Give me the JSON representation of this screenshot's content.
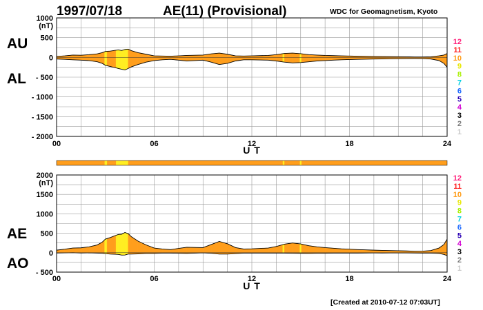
{
  "header": {
    "date": "1997/07/18",
    "title": "AE(11) (Provisional)",
    "source": "WDC for Geomagnetism, Kyoto"
  },
  "footer": {
    "created": "[Created at 2010-07-12 07:03UT]"
  },
  "colors": {
    "fill_default": "#ff9e1c",
    "fill_highlight": "#ffee22",
    "outline": "#000000",
    "grid": "#9a9a9a"
  },
  "legend": {
    "items": [
      {
        "label": "12",
        "color": "#ff1f7a"
      },
      {
        "label": "11",
        "color": "#ff2020"
      },
      {
        "label": "10",
        "color": "#ff9e1c"
      },
      {
        "label": "9",
        "color": "#e8e800"
      },
      {
        "label": "8",
        "color": "#a8f000"
      },
      {
        "label": "7",
        "color": "#00d0e0"
      },
      {
        "label": "6",
        "color": "#1e6bff"
      },
      {
        "label": "5",
        "color": "#2a00b4"
      },
      {
        "label": "4",
        "color": "#d200d2"
      },
      {
        "label": "3",
        "color": "#000000"
      },
      {
        "label": "2",
        "color": "#7a7a7a"
      },
      {
        "label": "1",
        "color": "#c8c8c8"
      }
    ]
  },
  "chart_data": [
    {
      "type": "area",
      "id": "au_al",
      "upper_label": "AU",
      "lower_label": "AL",
      "ylim": [
        -2000,
        1000
      ],
      "yticks": [
        "1000",
        "500",
        "0",
        "- 500",
        "- 1000",
        "- 1500",
        "- 2000"
      ],
      "unit": "(nT)",
      "xlim": [
        0,
        24
      ],
      "xticks": [
        "00",
        "06",
        "12",
        "18",
        "24"
      ],
      "xlabel": "U T",
      "x": [
        0,
        0.5,
        1,
        1.5,
        2,
        2.5,
        2.8,
        3,
        3.3,
        3.6,
        3.8,
        4,
        4.2,
        4.4,
        4.6,
        5,
        5.5,
        6,
        6.5,
        7,
        7.5,
        8,
        8.5,
        9,
        9.5,
        10,
        10.5,
        11,
        11.5,
        12,
        12.5,
        13,
        13.5,
        14,
        14.5,
        15,
        15.5,
        16,
        16.5,
        17,
        17.5,
        18,
        18.5,
        19,
        19.5,
        20,
        20.5,
        21,
        21.5,
        22,
        22.5,
        23,
        23.5,
        23.8,
        24
      ],
      "au": [
        25,
        40,
        60,
        55,
        70,
        90,
        120,
        150,
        160,
        180,
        190,
        175,
        200,
        210,
        170,
        120,
        80,
        40,
        35,
        30,
        40,
        50,
        55,
        60,
        90,
        110,
        80,
        40,
        35,
        40,
        45,
        50,
        70,
        100,
        110,
        95,
        70,
        60,
        50,
        45,
        40,
        35,
        30,
        28,
        25,
        22,
        20,
        18,
        15,
        10,
        10,
        15,
        40,
        60,
        100
      ],
      "al": [
        -40,
        -50,
        -60,
        -70,
        -80,
        -110,
        -150,
        -200,
        -230,
        -260,
        -280,
        -300,
        -320,
        -280,
        -240,
        -180,
        -120,
        -80,
        -60,
        -50,
        -70,
        -90,
        -80,
        -70,
        -120,
        -180,
        -150,
        -90,
        -60,
        -60,
        -65,
        -70,
        -90,
        -120,
        -140,
        -130,
        -110,
        -90,
        -80,
        -70,
        -60,
        -55,
        -50,
        -45,
        -40,
        -38,
        -35,
        -32,
        -30,
        -28,
        -30,
        -40,
        -80,
        -150,
        -250
      ],
      "highlight_ranges": [
        [
          2.95,
          3.1
        ],
        [
          3.65,
          4.4
        ],
        [
          13.9,
          14.0
        ],
        [
          14.95,
          15.05
        ]
      ],
      "grid": true
    },
    {
      "type": "area",
      "id": "ae_ao",
      "upper_label": "AE",
      "lower_label": "AO",
      "ylim": [
        -500,
        2000
      ],
      "yticks": [
        "2000",
        "1500",
        "1000",
        "500",
        "0",
        "- 500"
      ],
      "unit": "(nT)",
      "xlim": [
        0,
        24
      ],
      "xticks": [
        "00",
        "06",
        "12",
        "18",
        "24"
      ],
      "xlabel": "U T",
      "x": [
        0,
        0.5,
        1,
        1.5,
        2,
        2.5,
        2.8,
        3,
        3.3,
        3.6,
        3.8,
        4,
        4.2,
        4.4,
        4.6,
        5,
        5.5,
        6,
        6.5,
        7,
        7.5,
        8,
        8.5,
        9,
        9.5,
        10,
        10.5,
        11,
        11.5,
        12,
        12.5,
        13,
        13.5,
        14,
        14.5,
        15,
        15.5,
        16,
        16.5,
        17,
        17.5,
        18,
        18.5,
        19,
        19.5,
        20,
        20.5,
        21,
        21.5,
        22,
        22.5,
        23,
        23.5,
        23.8,
        24
      ],
      "ae": [
        65,
        90,
        120,
        125,
        150,
        200,
        270,
        350,
        390,
        440,
        470,
        475,
        520,
        490,
        410,
        300,
        200,
        120,
        95,
        80,
        110,
        140,
        135,
        130,
        210,
        290,
        230,
        130,
        95,
        100,
        110,
        120,
        160,
        220,
        250,
        225,
        180,
        150,
        130,
        115,
        100,
        90,
        80,
        73,
        65,
        60,
        55,
        50,
        45,
        38,
        40,
        55,
        120,
        210,
        350
      ],
      "ao": [
        -8,
        -5,
        0,
        -8,
        -5,
        -10,
        -15,
        -25,
        -35,
        -40,
        -45,
        -62,
        -60,
        -35,
        -35,
        -30,
        -20,
        -20,
        -12,
        -10,
        -15,
        -20,
        -12,
        -5,
        -15,
        -35,
        -35,
        -25,
        -12,
        -10,
        -10,
        -10,
        -10,
        -10,
        -15,
        -17,
        -20,
        -15,
        -15,
        -12,
        -10,
        -10,
        -10,
        -8,
        -7,
        -8,
        -7,
        -7,
        -7,
        -9,
        -10,
        -12,
        -20,
        -45,
        -75
      ],
      "highlight_ranges": [
        [
          2.95,
          3.1
        ],
        [
          3.65,
          4.4
        ],
        [
          13.9,
          14.0
        ],
        [
          14.95,
          15.05
        ]
      ],
      "grid": true
    }
  ]
}
